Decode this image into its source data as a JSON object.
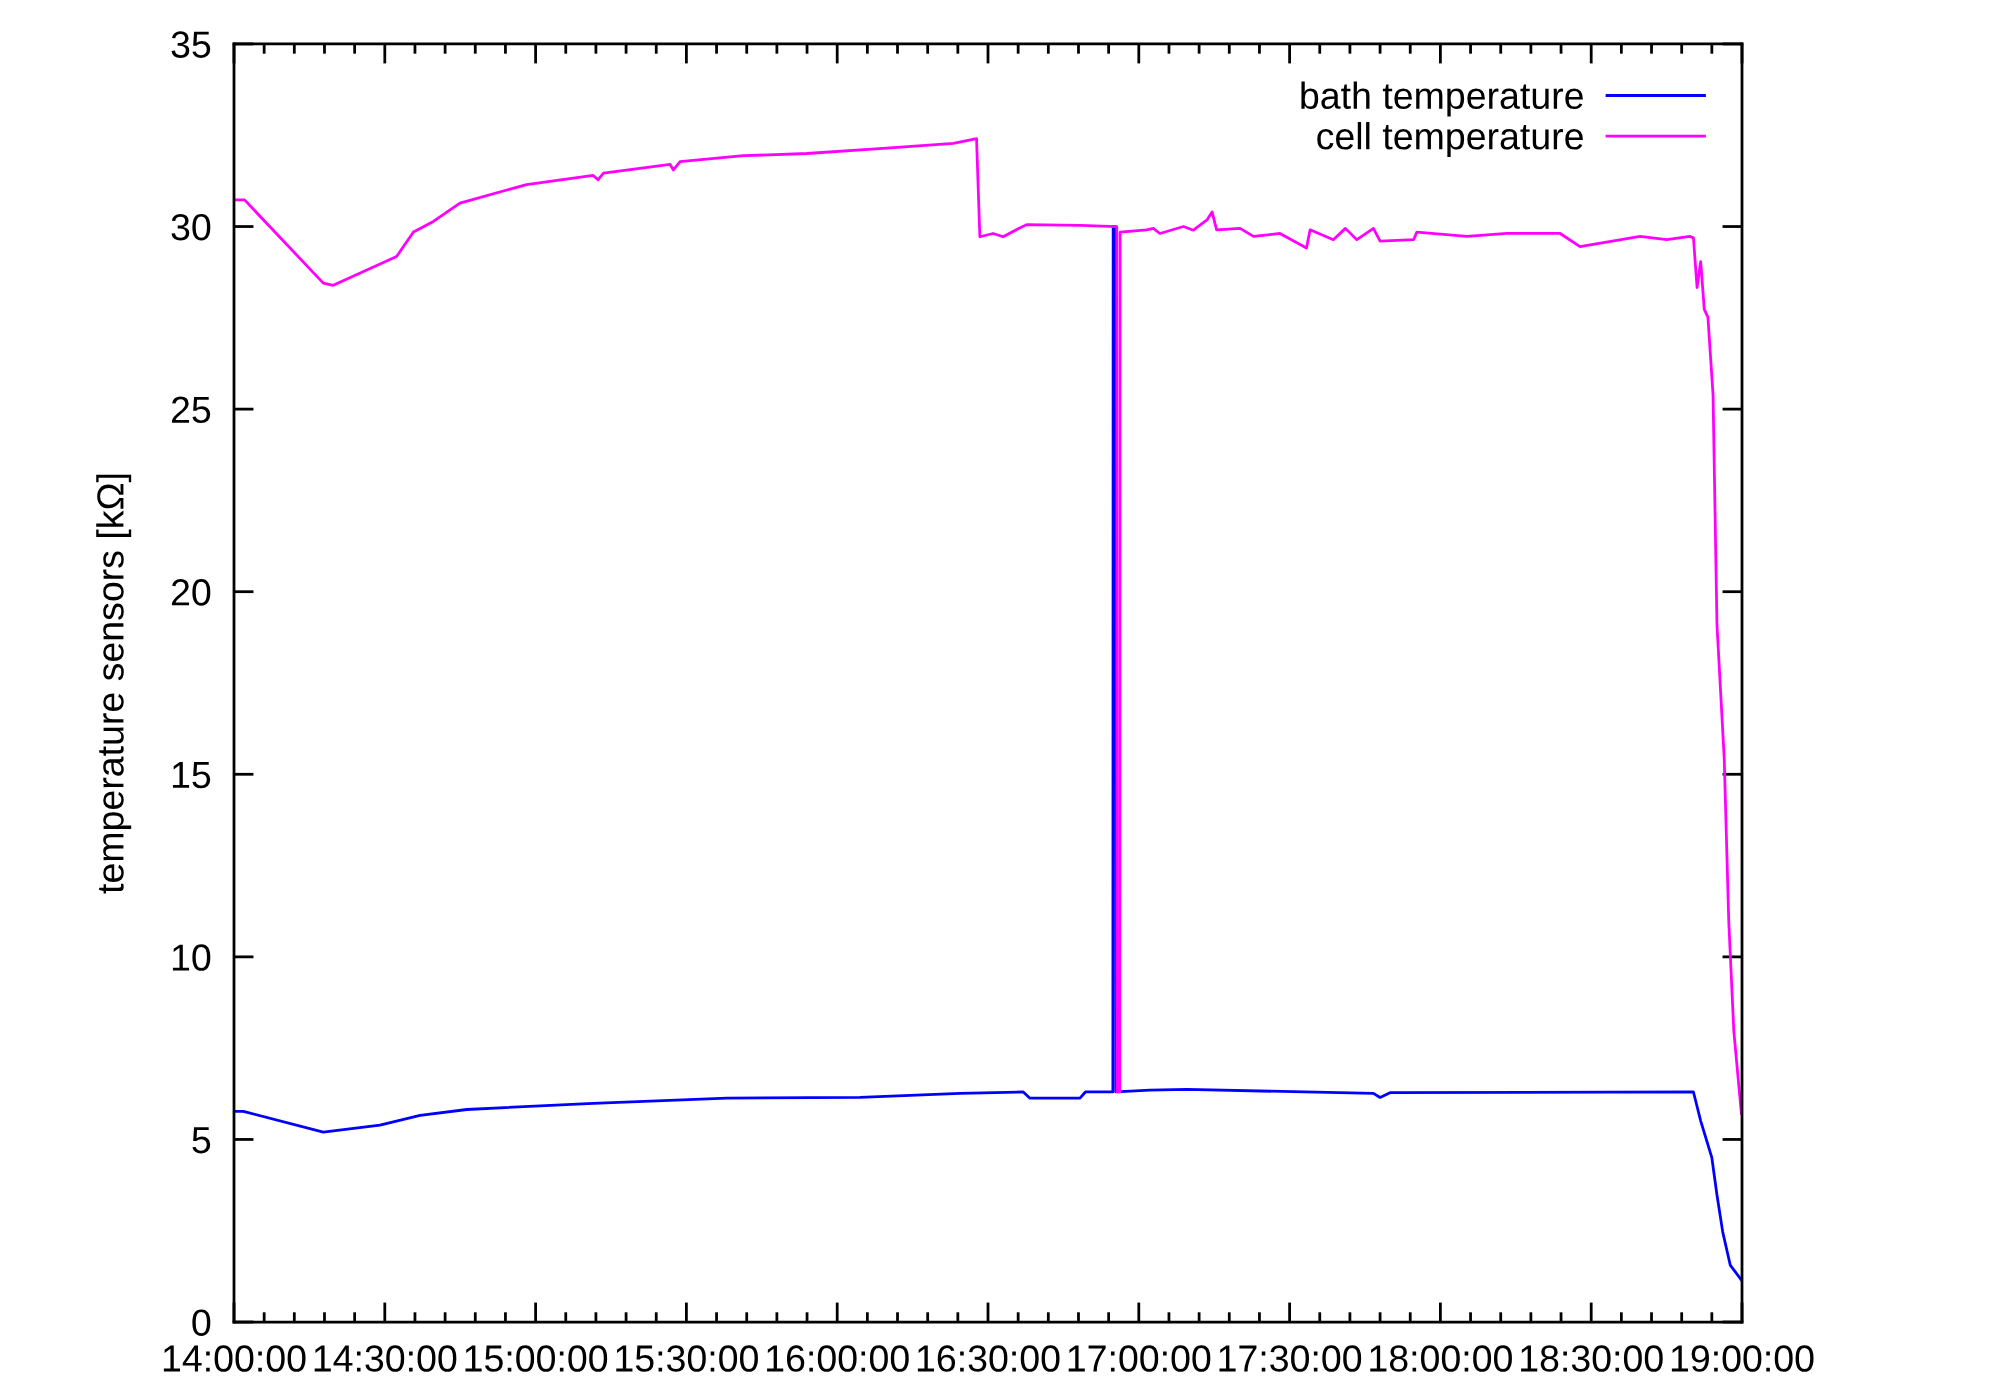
{
  "chart_data": {
    "type": "line",
    "ylabel": "temperature sensors [kΩ]",
    "xlim": [
      14,
      19
    ],
    "ylim": [
      0,
      35
    ],
    "xticks": [
      {
        "value": 14,
        "label": "14:00:00"
      },
      {
        "value": 14.1,
        "label": null
      },
      {
        "value": 14.2,
        "label": null
      },
      {
        "value": 14.3,
        "label": null
      },
      {
        "value": 14.4,
        "label": null
      },
      {
        "value": 14.5,
        "label": "14:30:00"
      },
      {
        "value": 14.6,
        "label": null
      },
      {
        "value": 14.7,
        "label": null
      },
      {
        "value": 14.8,
        "label": null
      },
      {
        "value": 14.9,
        "label": null
      },
      {
        "value": 15,
        "label": "15:00:00"
      },
      {
        "value": 15.1,
        "label": null
      },
      {
        "value": 15.2,
        "label": null
      },
      {
        "value": 15.3,
        "label": null
      },
      {
        "value": 15.4,
        "label": null
      },
      {
        "value": 15.5,
        "label": "15:30:00"
      },
      {
        "value": 15.6,
        "label": null
      },
      {
        "value": 15.7,
        "label": null
      },
      {
        "value": 15.8,
        "label": null
      },
      {
        "value": 15.9,
        "label": null
      },
      {
        "value": 16,
        "label": "16:00:00"
      },
      {
        "value": 16.1,
        "label": null
      },
      {
        "value": 16.2,
        "label": null
      },
      {
        "value": 16.3,
        "label": null
      },
      {
        "value": 16.4,
        "label": null
      },
      {
        "value": 16.5,
        "label": "16:30:00"
      },
      {
        "value": 16.6,
        "label": null
      },
      {
        "value": 16.7,
        "label": null
      },
      {
        "value": 16.8,
        "label": null
      },
      {
        "value": 16.9,
        "label": null
      },
      {
        "value": 17,
        "label": "17:00:00"
      },
      {
        "value": 17.1,
        "label": null
      },
      {
        "value": 17.2,
        "label": null
      },
      {
        "value": 17.3,
        "label": null
      },
      {
        "value": 17.4,
        "label": null
      },
      {
        "value": 17.5,
        "label": "17:30:00"
      },
      {
        "value": 17.6,
        "label": null
      },
      {
        "value": 17.7,
        "label": null
      },
      {
        "value": 17.8,
        "label": null
      },
      {
        "value": 17.9,
        "label": null
      },
      {
        "value": 18,
        "label": "18:00:00"
      },
      {
        "value": 18.1,
        "label": null
      },
      {
        "value": 18.2,
        "label": null
      },
      {
        "value": 18.3,
        "label": null
      },
      {
        "value": 18.4,
        "label": null
      },
      {
        "value": 18.5,
        "label": "18:30:00"
      },
      {
        "value": 18.6,
        "label": null
      },
      {
        "value": 18.7,
        "label": null
      },
      {
        "value": 18.8,
        "label": null
      },
      {
        "value": 18.9,
        "label": null
      },
      {
        "value": 19,
        "label": "19:00:00"
      }
    ],
    "yticks": [
      0,
      5,
      10,
      15,
      20,
      25,
      30,
      35
    ],
    "legend": "top right",
    "series": [
      {
        "name": "bath temperature",
        "color": "#0000ff",
        "x": [
          14.0,
          14.031,
          14.296,
          14.484,
          14.617,
          14.772,
          15.191,
          15.634,
          16.076,
          16.407,
          16.617,
          16.639,
          16.805,
          16.823,
          16.914,
          16.915,
          16.923,
          16.924,
          17.037,
          17.159,
          17.778,
          17.8,
          17.833,
          18.839,
          18.863,
          18.9,
          18.917,
          18.936,
          18.961,
          18.998
        ],
        "values": [
          5.77,
          5.77,
          5.2,
          5.39,
          5.66,
          5.82,
          5.99,
          6.13,
          6.15,
          6.26,
          6.3,
          6.13,
          6.13,
          6.3,
          6.3,
          30.0,
          30.0,
          6.3,
          6.35,
          6.37,
          6.26,
          6.15,
          6.28,
          6.3,
          5.51,
          4.5,
          3.48,
          2.47,
          1.56,
          1.15
        ]
      },
      {
        "name": "cell temperature",
        "color": "#ff00ff",
        "x": [
          14.0,
          14.035,
          14.296,
          14.329,
          14.539,
          14.595,
          14.661,
          14.749,
          14.97,
          15.191,
          15.207,
          15.225,
          15.446,
          15.457,
          15.479,
          15.689,
          15.899,
          16.164,
          16.385,
          16.462,
          16.473,
          16.517,
          16.55,
          16.605,
          16.628,
          16.805,
          16.927,
          16.928,
          16.937,
          16.938,
          17.026,
          17.048,
          17.07,
          17.148,
          17.181,
          17.226,
          17.243,
          17.258,
          17.336,
          17.38,
          17.468,
          17.556,
          17.568,
          17.645,
          17.685,
          17.723,
          17.778,
          17.8,
          17.911,
          17.922,
          18.088,
          18.221,
          18.397,
          18.463,
          18.662,
          18.75,
          18.828,
          18.839,
          18.851,
          18.863,
          18.875,
          18.887,
          18.904,
          18.917,
          18.941,
          18.956,
          18.973,
          18.998
        ],
        "values": [
          30.73,
          30.73,
          28.45,
          28.39,
          29.18,
          29.85,
          30.14,
          30.64,
          31.15,
          31.4,
          31.28,
          31.46,
          31.7,
          31.55,
          31.78,
          31.94,
          32.0,
          32.15,
          32.28,
          32.41,
          29.72,
          29.81,
          29.72,
          29.96,
          30.05,
          30.03,
          30.0,
          6.3,
          6.3,
          29.85,
          29.91,
          29.95,
          29.81,
          30.0,
          29.9,
          30.18,
          30.4,
          29.91,
          29.95,
          29.73,
          29.81,
          29.41,
          29.91,
          29.64,
          29.95,
          29.64,
          29.95,
          29.6,
          29.64,
          29.85,
          29.73,
          29.81,
          29.81,
          29.45,
          29.73,
          29.64,
          29.73,
          29.69,
          28.33,
          29.04,
          27.73,
          27.52,
          25.39,
          19.1,
          15.45,
          10.99,
          7.95,
          5.71
        ]
      }
    ]
  }
}
